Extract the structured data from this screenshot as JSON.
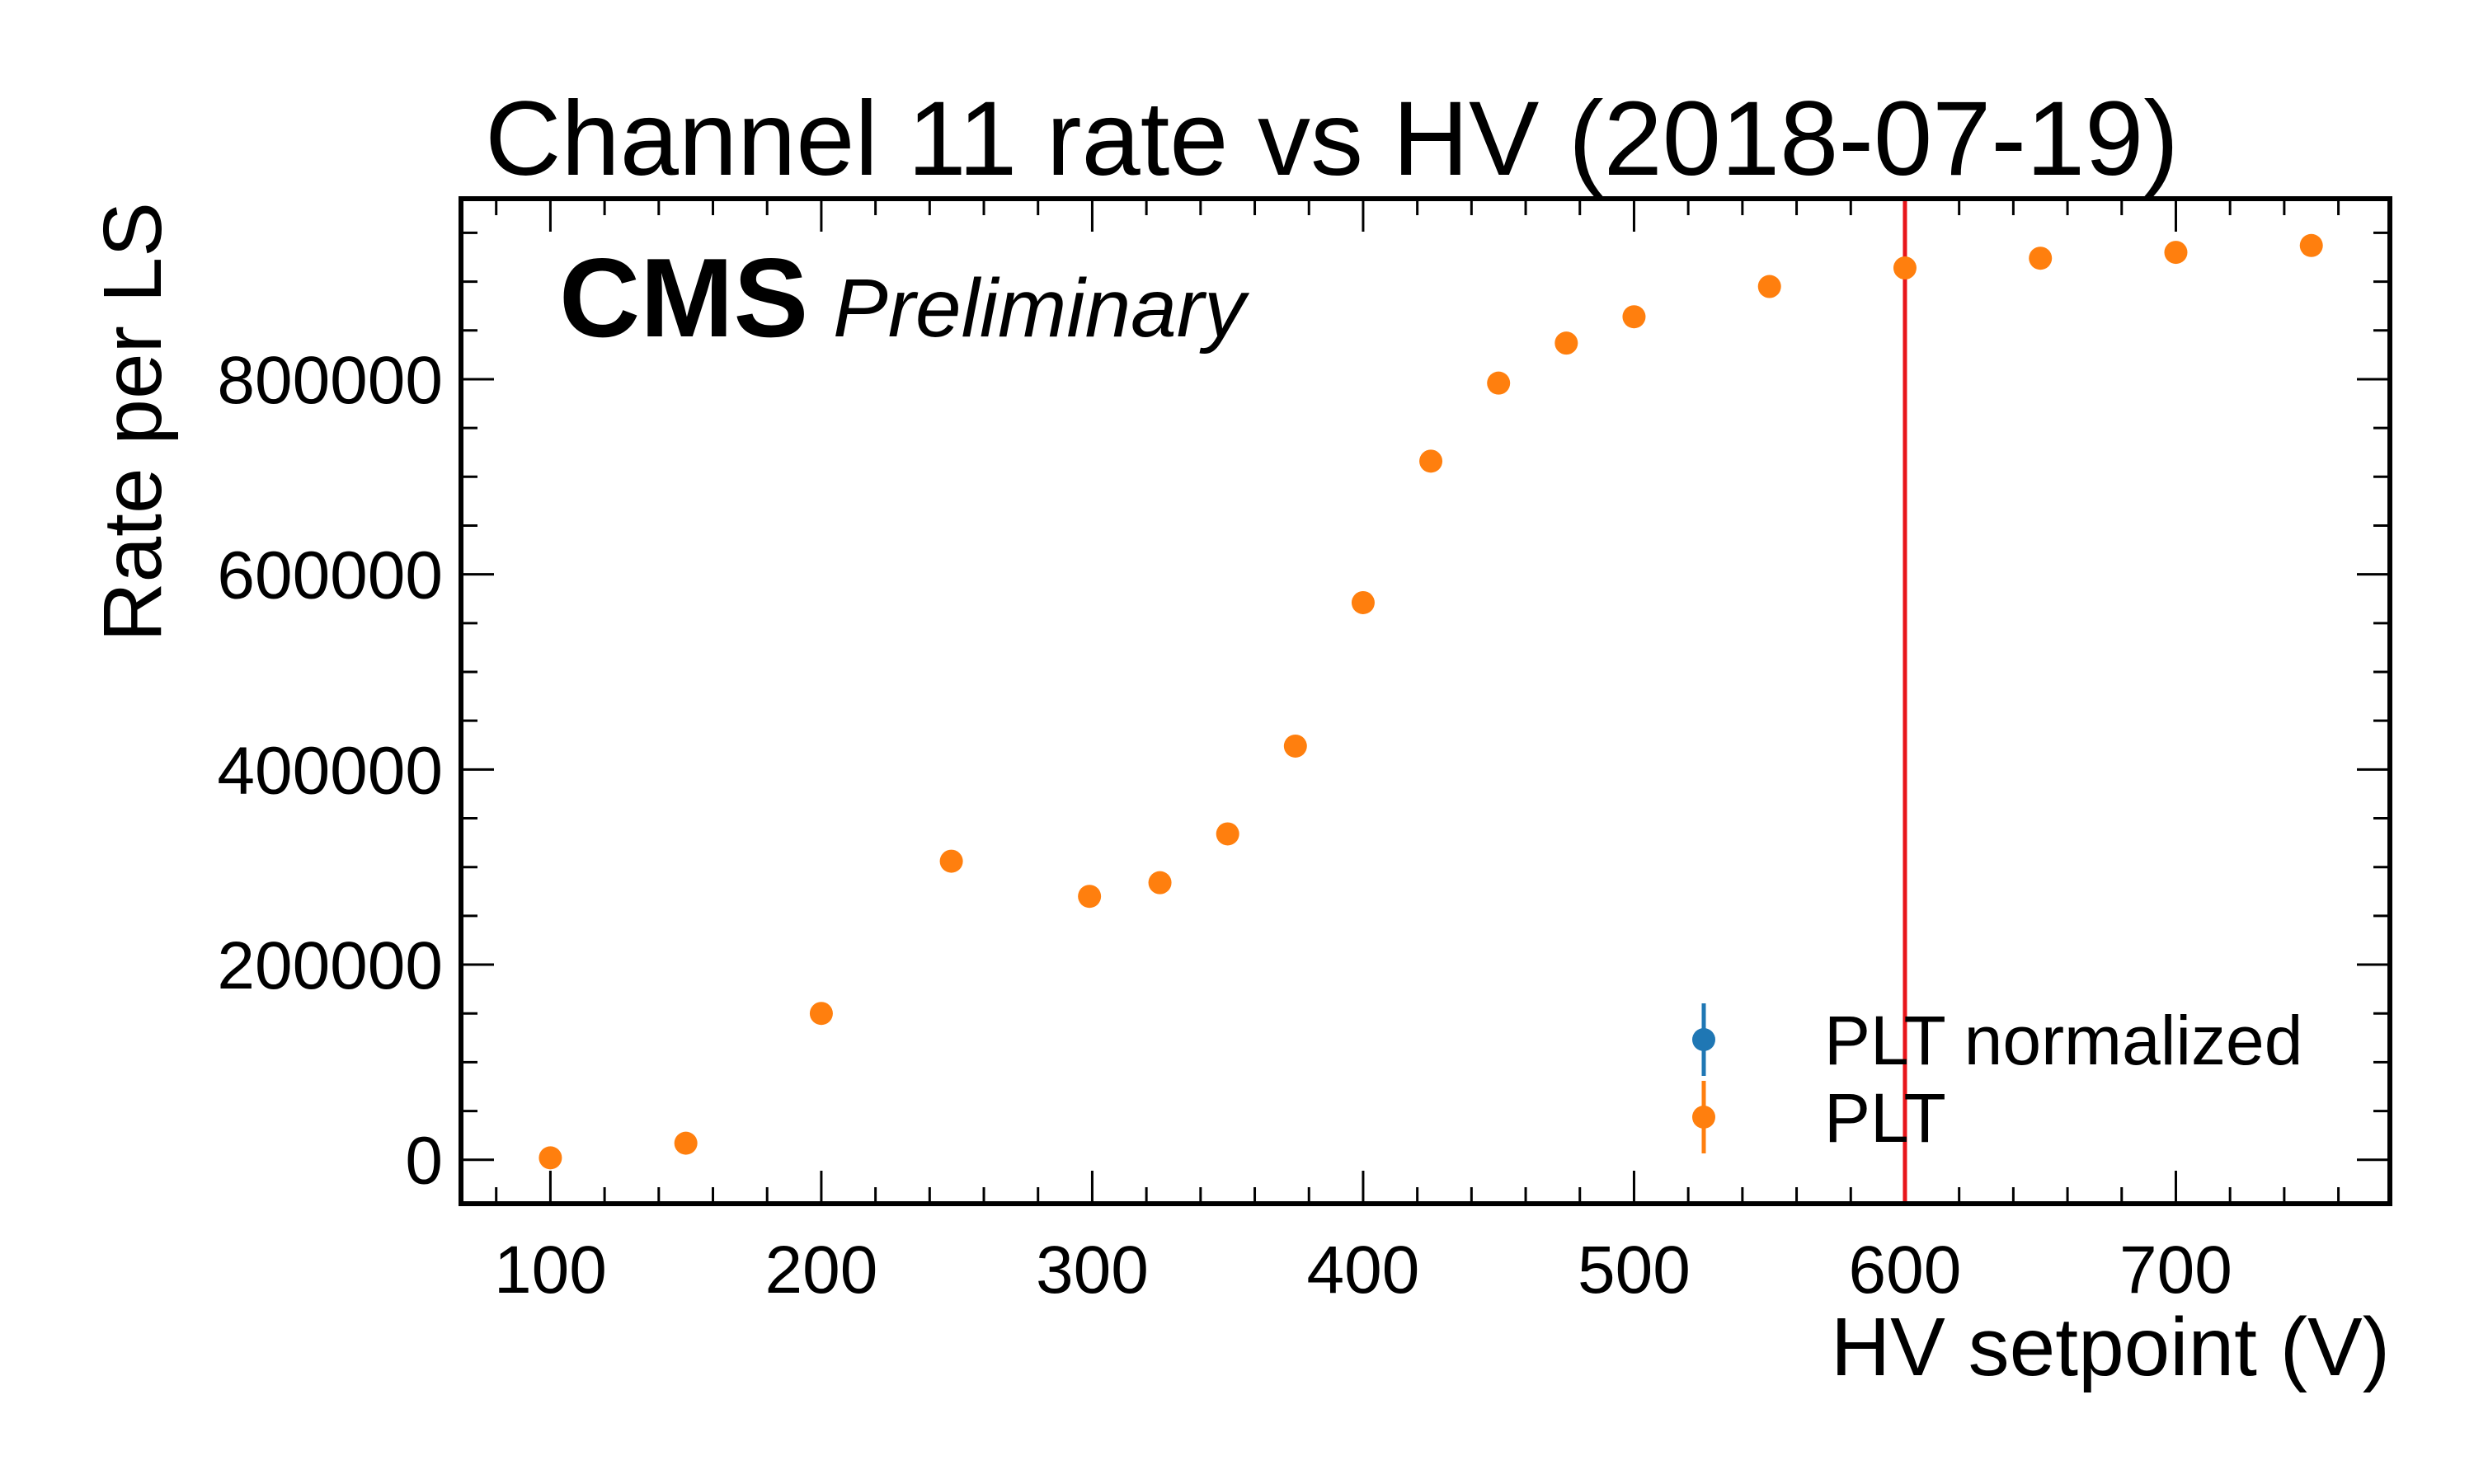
{
  "chart_data": {
    "type": "scatter",
    "title": "Channel 11 rate vs HV (2018-07-19)",
    "xlabel": "HV setpoint (V)",
    "ylabel": "Rate per LS",
    "experiment_label": "CMS",
    "status_label": "Preliminary",
    "xlim": [
      67,
      779
    ],
    "ylim": [
      -45000,
      985000
    ],
    "xticks": [
      100,
      200,
      300,
      400,
      500,
      600,
      700
    ],
    "yticks": [
      0,
      200000,
      400000,
      600000,
      800000
    ],
    "x_minor_step": 20,
    "y_minor_step": 50000,
    "grid": false,
    "legend_position": "lower-right",
    "reference_line": {
      "x": 600,
      "color": "#e8161b"
    },
    "series": [
      {
        "name": "PLT normalized",
        "color": "#1f77b4",
        "x": [],
        "y": []
      },
      {
        "name": "PLT",
        "color": "#ff7f0e",
        "x": [
          100,
          150,
          200,
          248,
          299,
          325,
          350,
          375,
          400,
          425,
          450,
          475,
          500,
          550,
          600,
          650,
          700,
          750
        ],
        "y": [
          2000,
          17000,
          150000,
          306000,
          270000,
          284000,
          334000,
          424000,
          571000,
          716000,
          796000,
          837000,
          864000,
          895000,
          914000,
          924000,
          930000,
          937000
        ]
      }
    ]
  }
}
